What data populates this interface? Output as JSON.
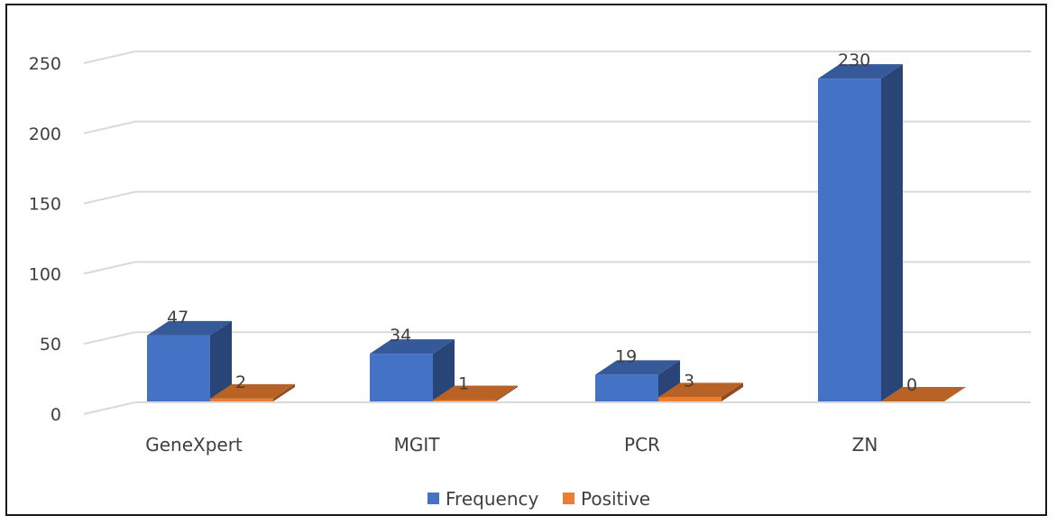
{
  "chart_data": {
    "type": "bar",
    "style": "3d-clustered-column",
    "categories": [
      "GeneXpert",
      "MGIT",
      "PCR",
      "ZN"
    ],
    "series": [
      {
        "name": "Frequency",
        "values": [
          47,
          34,
          19,
          230
        ],
        "color": "#4472C4"
      },
      {
        "name": "Positive",
        "values": [
          2,
          1,
          3,
          0
        ],
        "color": "#ED7D31"
      }
    ],
    "yticks": [
      "0",
      "50",
      "100",
      "150",
      "200",
      "250"
    ],
    "ylim": [
      0,
      280
    ],
    "grid": true,
    "legend": "bottom-center",
    "data_labels": true
  }
}
